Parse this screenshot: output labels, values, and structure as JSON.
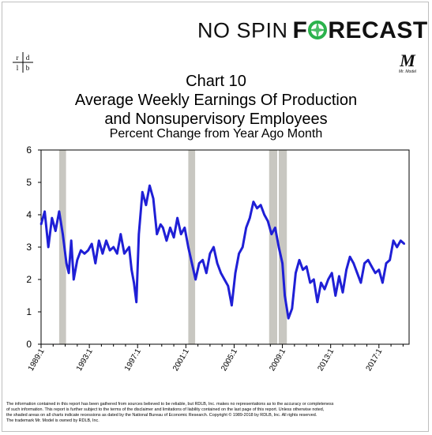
{
  "brand": {
    "left": "NO SPIN",
    "right_prefix": "F",
    "right_suffix": "RECAST",
    "accent": "#2bb24c"
  },
  "logos": {
    "rdlb": [
      "r",
      "d",
      "l",
      "b"
    ],
    "mr_model": "Mr. Model"
  },
  "title_lines": [
    "Chart 10",
    "Average Weekly Earnings Of Production",
    "and Nonsupervisory Employees"
  ],
  "subtitle": "Percent Change from Year Ago Month",
  "footer_lines": [
    "The information contained in this report has been gathered from sources believed to be reliable, but RDLB, Inc. makes no representations as to the accuracy or completeness",
    "of such information. This report is further subject to the terms of the disclaimer and limitations of liability contained on the last page of this report. Unless otherwise noted,",
    "the shaded areas on all charts indicate recessions as dated by the National Bureau of Economic Research. Copyright © 1989-2018 by RDLB, Inc. All rights reserved.",
    "The trademark Mr. Model is owned by RDLB, Inc."
  ],
  "chart_data": {
    "type": "line",
    "title": "Chart 10",
    "ylim": [
      0,
      6
    ],
    "xlim": [
      1989.0,
      2019.5
    ],
    "yticks": [
      0,
      1,
      2,
      3,
      4,
      5,
      6
    ],
    "xticks": [
      "1989:1",
      "1993:1",
      "1997:1",
      "2001:1",
      "2005:1",
      "2009:1",
      "2013:1",
      "2017:1"
    ],
    "line_color": "#1f1fd6",
    "recession_color": "#c8c7c1",
    "recessions": [
      [
        1990.5,
        1991.2
      ],
      [
        2001.2,
        2001.9
      ],
      [
        2007.9,
        2008.7
      ],
      [
        2008.7,
        2009.5
      ]
    ],
    "series": [
      {
        "x": [
          1989.0,
          1989.3,
          1989.6,
          1989.9,
          1990.2,
          1990.5,
          1990.8,
          1991.1,
          1991.3,
          1991.5,
          1991.7,
          1992.0,
          1992.3,
          1992.6,
          1992.9,
          1993.2,
          1993.5,
          1993.8,
          1994.1,
          1994.4,
          1994.7,
          1995.0,
          1995.3,
          1995.6,
          1995.9,
          1996.1,
          1996.3,
          1996.5,
          1996.7,
          1996.9,
          1997.1,
          1997.4,
          1997.7,
          1998.0,
          1998.3,
          1998.6,
          1998.9,
          1999.1,
          1999.4,
          1999.7,
          2000.0,
          2000.3,
          2000.6,
          2000.9,
          2001.2,
          2001.5,
          2001.8,
          2002.1,
          2002.4,
          2002.7,
          2003.0,
          2003.3,
          2003.6,
          2003.9,
          2004.2,
          2004.5,
          2004.8,
          2005.1,
          2005.4,
          2005.7,
          2006.0,
          2006.3,
          2006.6,
          2006.9,
          2007.2,
          2007.5,
          2007.8,
          2008.1,
          2008.4,
          2008.7,
          2009.0,
          2009.2,
          2009.5,
          2009.8,
          2010.1,
          2010.4,
          2010.7,
          2011.0,
          2011.3,
          2011.6,
          2011.9,
          2012.2,
          2012.5,
          2012.8,
          2013.1,
          2013.4,
          2013.7,
          2014.0,
          2014.3,
          2014.6,
          2014.9,
          2015.2,
          2015.5,
          2015.8,
          2016.1,
          2016.4,
          2016.7,
          2017.0,
          2017.3,
          2017.6,
          2017.9,
          2018.2,
          2018.5,
          2018.8,
          2019.1
        ],
        "y": [
          3.7,
          4.1,
          3.0,
          3.9,
          3.5,
          4.1,
          3.4,
          2.5,
          2.2,
          3.2,
          2.0,
          2.6,
          2.9,
          2.8,
          2.9,
          3.1,
          2.5,
          3.2,
          2.8,
          3.2,
          2.9,
          3.0,
          2.8,
          3.4,
          2.8,
          2.9,
          3.0,
          2.3,
          1.9,
          1.3,
          3.4,
          4.7,
          4.3,
          4.9,
          4.5,
          3.4,
          3.7,
          3.6,
          3.2,
          3.6,
          3.3,
          3.9,
          3.4,
          3.6,
          3.0,
          2.5,
          2.0,
          2.5,
          2.6,
          2.2,
          2.8,
          3.0,
          2.5,
          2.2,
          2.0,
          1.8,
          1.2,
          2.2,
          2.8,
          3.0,
          3.6,
          3.9,
          4.4,
          4.2,
          4.3,
          4.0,
          3.8,
          3.4,
          3.6,
          3.0,
          2.5,
          1.5,
          0.8,
          1.1,
          2.2,
          2.6,
          2.3,
          2.4,
          1.9,
          2.0,
          1.3,
          1.9,
          1.7,
          2.0,
          2.2,
          1.5,
          2.1,
          1.6,
          2.3,
          2.7,
          2.5,
          2.2,
          1.9,
          2.5,
          2.6,
          2.4,
          2.2,
          2.3,
          1.9,
          2.5,
          2.6,
          3.2,
          3.0,
          3.2,
          3.1
        ]
      }
    ]
  }
}
